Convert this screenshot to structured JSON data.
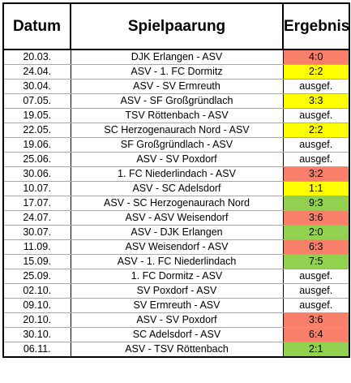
{
  "headers": {
    "date": "Datum",
    "match": "Spielpaarung",
    "result": "Ergebnis"
  },
  "colors": {
    "win": "#92d050",
    "draw": "#ffff00",
    "loss": "#f8806b"
  },
  "rows": [
    {
      "date": "20.03.",
      "match": "DJK Erlangen - ASV",
      "result": "4:0",
      "outcome": "loss"
    },
    {
      "date": "24.04.",
      "match": "ASV - 1. FC Dormitz",
      "result": "2:2",
      "outcome": "draw"
    },
    {
      "date": "30.04.",
      "match": "ASV - SV Ermreuth",
      "result": "ausgef.",
      "outcome": "none"
    },
    {
      "date": "07.05.",
      "match": "ASV - SF Großgründlach",
      "result": "3:3",
      "outcome": "draw"
    },
    {
      "date": "19.05.",
      "match": "TSV Röttenbach - ASV",
      "result": "ausgef.",
      "outcome": "none"
    },
    {
      "date": "22.05.",
      "match": "SC Herzogenaurach Nord - ASV",
      "result": "2:2",
      "outcome": "draw"
    },
    {
      "date": "19.06.",
      "match": "SF Großgründlach - ASV",
      "result": "ausgef.",
      "outcome": "none"
    },
    {
      "date": "25.06.",
      "match": "ASV - SV Poxdorf",
      "result": "ausgef.",
      "outcome": "none"
    },
    {
      "date": "30.06.",
      "match": "1. FC Niederlindach - ASV",
      "result": "3:2",
      "outcome": "loss"
    },
    {
      "date": "10.07.",
      "match": "ASV - SC Adelsdorf",
      "result": "1:1",
      "outcome": "draw"
    },
    {
      "date": "17.07.",
      "match": "ASV - SC Herzogenaurach Nord",
      "result": "9:3",
      "outcome": "win"
    },
    {
      "date": "24.07.",
      "match": "ASV - ASV Weisendorf",
      "result": "3:6",
      "outcome": "loss"
    },
    {
      "date": "30.07.",
      "match": "ASV - DJK Erlangen",
      "result": "2:0",
      "outcome": "win"
    },
    {
      "date": "11.09.",
      "match": "ASV Weisendorf - ASV",
      "result": "6:3",
      "outcome": "loss"
    },
    {
      "date": "15.09.",
      "match": "ASV - 1. FC Niederlindach",
      "result": "7:5",
      "outcome": "win"
    },
    {
      "date": "25.09.",
      "match": "1. FC Dormitz - ASV",
      "result": "ausgef.",
      "outcome": "none"
    },
    {
      "date": "02.10.",
      "match": "SV Poxdorf - ASV",
      "result": "ausgef.",
      "outcome": "none"
    },
    {
      "date": "09.10.",
      "match": "SV Ermreuth - ASV",
      "result": "ausgef.",
      "outcome": "none"
    },
    {
      "date": "20.10.",
      "match": "ASV - SV Poxdorf",
      "result": "3:6",
      "outcome": "loss"
    },
    {
      "date": "30.10.",
      "match": "SC Adelsdorf - ASV",
      "result": "6:4",
      "outcome": "loss"
    },
    {
      "date": "06.11.",
      "match": "ASV - TSV Röttenbach",
      "result": "2:1",
      "outcome": "win"
    }
  ]
}
